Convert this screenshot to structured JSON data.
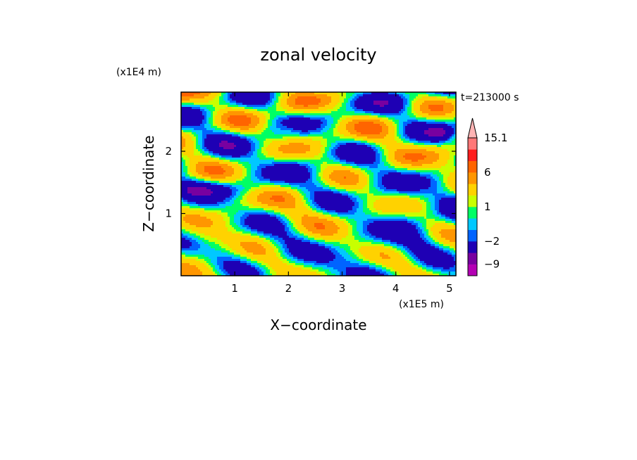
{
  "chart_data": {
    "type": "heatmap",
    "title": "zonal velocity",
    "xlabel": "X−coordinate",
    "ylabel": "Z−coordinate",
    "x_scale_label": "(x1E5 m)",
    "y_scale_label": "(x1E4 m)",
    "time_label": "t=213000 s",
    "xlim": [
      0,
      5.12
    ],
    "ylim": [
      0,
      2.95
    ],
    "x_ticks": [
      "1",
      "2",
      "3",
      "4",
      "5"
    ],
    "y_ticks": [
      "1",
      "2"
    ],
    "colorbar": {
      "levels": [
        -12,
        -9,
        -6,
        -2,
        -1,
        0,
        1,
        2,
        4,
        6,
        9,
        12,
        15.1
      ],
      "colors": [
        "#ff00b4",
        "#b400b4",
        "#7800a0",
        "#1e00b4",
        "#0064ff",
        "#00c8ff",
        "#00ff64",
        "#c8ff00",
        "#ffd200",
        "#ff9600",
        "#ff6400",
        "#ff1e1e",
        "#ff7878",
        "#ffb4b4"
      ],
      "tick_labels": [
        "15.1",
        "6",
        "1",
        "−2",
        "−9"
      ],
      "extend_max_arrow": true
    }
  }
}
